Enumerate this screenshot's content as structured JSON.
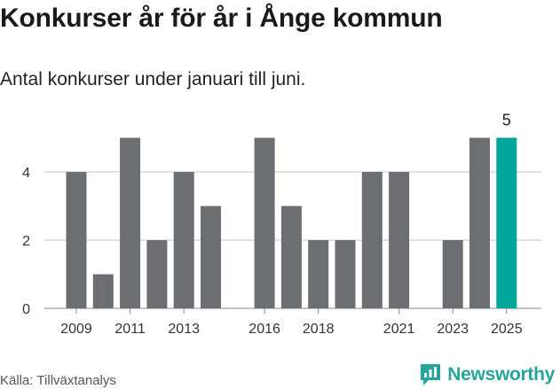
{
  "title": "Konkurser år för år i Ånge kommun",
  "subtitle": "Antal konkurser under januari till juni.",
  "source": "Källa: Tillväxtanalys",
  "brand": "Newsworthy",
  "colors": {
    "bar": "#6d6e72",
    "highlight": "#00a699",
    "grid": "#d9d9d9",
    "brand": "#26a69a"
  },
  "chart_data": {
    "type": "bar",
    "categories": [
      "2009",
      "2010",
      "2011",
      "2012",
      "2013",
      "2014",
      "2015",
      "2016",
      "2017",
      "2018",
      "2019",
      "2020",
      "2021",
      "2022",
      "2023",
      "2024",
      "2025"
    ],
    "values": [
      4,
      1,
      5,
      2,
      4,
      3,
      0,
      5,
      3,
      2,
      2,
      4,
      4,
      0,
      2,
      5,
      5
    ],
    "highlight_index": 16,
    "highlight_label": "5",
    "x_tick_labels": [
      "2009",
      "2011",
      "2013",
      "2016",
      "2018",
      "2021",
      "2023",
      "2025"
    ],
    "y_ticks": [
      0,
      2,
      4
    ],
    "ylim": [
      0,
      5
    ],
    "grid": true,
    "xlabel": "",
    "ylabel": ""
  }
}
